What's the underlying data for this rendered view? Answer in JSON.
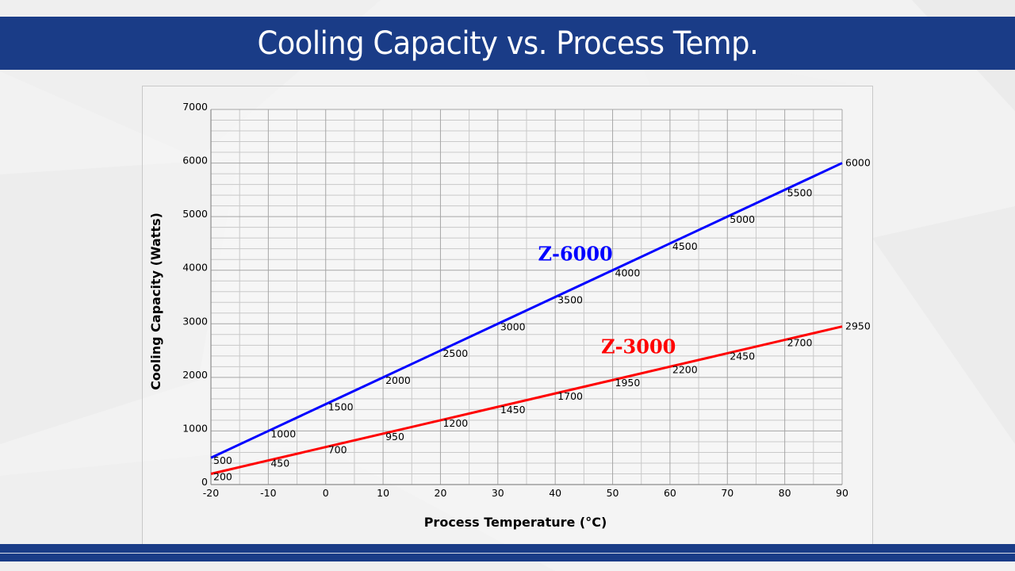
{
  "slide": {
    "title": "Cooling Capacity vs. Process Temp.",
    "brand_color": "#1a3c87"
  },
  "chart_data": {
    "type": "line",
    "title": "Cooling Capacity vs. Process Temp.",
    "xlabel": "Process Temperature (°C)",
    "ylabel": "Cooling Capacity (Watts)",
    "xlim": [
      -20,
      90
    ],
    "ylim": [
      0,
      7000
    ],
    "x_ticks": [
      -20,
      -10,
      0,
      10,
      20,
      30,
      40,
      50,
      60,
      70,
      80,
      90
    ],
    "y_ticks": [
      0,
      1000,
      2000,
      3000,
      4000,
      5000,
      6000,
      7000
    ],
    "x_minor_step": 5,
    "y_minor_step": 200,
    "grid": true,
    "legend": "inline-labels",
    "x": [
      -20,
      -10,
      0,
      10,
      20,
      30,
      40,
      50,
      60,
      70,
      80,
      90
    ],
    "series": [
      {
        "name": "Z-6000",
        "color": "#0000ff",
        "values": [
          500,
          1000,
          1500,
          2000,
          2500,
          3000,
          3500,
          4000,
          4500,
          5000,
          5500,
          6000
        ],
        "data_labels": [
          "500",
          "1000",
          "1500",
          "2000",
          "2500",
          "3000",
          "3500",
          "4000",
          "4500",
          "5000",
          "5500",
          "6000"
        ],
        "annotation": {
          "text": "Z-6000",
          "x": 37,
          "y": 4180
        }
      },
      {
        "name": "Z-3000",
        "color": "#ff0000",
        "values": [
          200,
          450,
          700,
          950,
          1200,
          1450,
          1700,
          1950,
          2200,
          2450,
          2700,
          2950
        ],
        "data_labels": [
          "200",
          "450",
          "700",
          "950",
          "1200",
          "1450",
          "1700",
          "1950",
          "2200",
          "2450",
          "2700",
          "2950"
        ],
        "annotation": {
          "text": "Z-3000",
          "x": 48,
          "y": 2450
        }
      }
    ]
  }
}
